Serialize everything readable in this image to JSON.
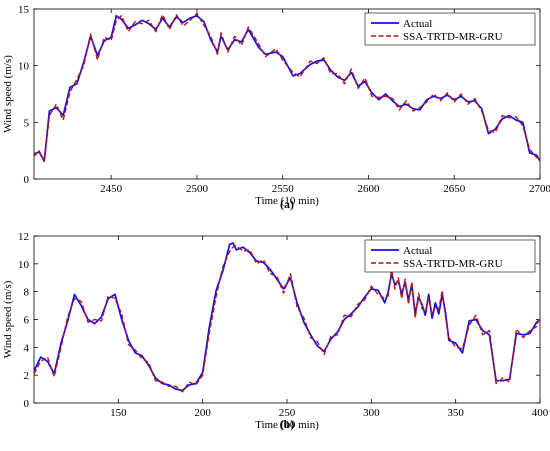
{
  "colors": {
    "actual": "#1010ee",
    "predicted": "#bb1111"
  },
  "chart_data": [
    {
      "type": "line",
      "panel_label": "(a)",
      "xlabel": "Time (10 min)",
      "ylabel": "Wind speed (m/s)",
      "xlim": [
        2405,
        2700
      ],
      "ylim": [
        0,
        15
      ],
      "xticks": [
        2450,
        2500,
        2550,
        2600,
        2650,
        2700
      ],
      "yticks": [
        0,
        5,
        10,
        15
      ],
      "grid": false,
      "legend_position": "top-right",
      "series": [
        {
          "name": "Actual",
          "style": "solid",
          "x": [
            2405,
            2408,
            2411,
            2414,
            2418,
            2422,
            2426,
            2430,
            2434,
            2438,
            2442,
            2446,
            2450,
            2453,
            2456,
            2460,
            2464,
            2468,
            2472,
            2476,
            2480,
            2484,
            2488,
            2492,
            2496,
            2500,
            2504,
            2508,
            2512,
            2514,
            2518,
            2522,
            2526,
            2530,
            2536,
            2540,
            2546,
            2550,
            2556,
            2560,
            2566,
            2570,
            2574,
            2578,
            2582,
            2586,
            2590,
            2594,
            2598,
            2602,
            2606,
            2610,
            2614,
            2618,
            2622,
            2626,
            2630,
            2634,
            2638,
            2642,
            2646,
            2650,
            2654,
            2658,
            2662,
            2666,
            2670,
            2674,
            2678,
            2682,
            2686,
            2690,
            2694,
            2698,
            2700
          ],
          "y": [
            2.2,
            2.4,
            1.6,
            6.0,
            6.3,
            5.6,
            8.1,
            8.4,
            10.3,
            12.6,
            10.9,
            12.2,
            12.5,
            14.4,
            14.1,
            13.3,
            13.6,
            14.0,
            13.7,
            13.2,
            14.2,
            13.4,
            14.3,
            13.8,
            14.2,
            14.4,
            13.9,
            12.3,
            11.2,
            12.6,
            11.4,
            12.3,
            12.1,
            13.2,
            11.6,
            11.0,
            11.2,
            10.8,
            9.1,
            9.3,
            10.1,
            10.4,
            10.5,
            9.6,
            9.0,
            8.7,
            9.4,
            8.2,
            8.6,
            7.6,
            7.0,
            7.5,
            6.9,
            6.4,
            6.6,
            6.2,
            6.1,
            7.0,
            7.3,
            7.1,
            7.4,
            7.0,
            7.3,
            6.8,
            6.9,
            6.2,
            4.0,
            4.4,
            5.3,
            5.6,
            5.2,
            5.0,
            2.3,
            2.1,
            1.6
          ]
        },
        {
          "name": "SSA-TRTD-MR-GRU",
          "style": "dashed",
          "x": [
            2405,
            2408,
            2411,
            2414,
            2418,
            2422,
            2426,
            2430,
            2434,
            2438,
            2442,
            2446,
            2450,
            2453,
            2456,
            2460,
            2464,
            2468,
            2472,
            2476,
            2480,
            2484,
            2488,
            2492,
            2496,
            2500,
            2504,
            2508,
            2512,
            2514,
            2518,
            2522,
            2526,
            2530,
            2536,
            2540,
            2546,
            2550,
            2556,
            2560,
            2566,
            2570,
            2574,
            2578,
            2582,
            2586,
            2590,
            2594,
            2598,
            2602,
            2606,
            2610,
            2614,
            2618,
            2622,
            2626,
            2630,
            2634,
            2638,
            2642,
            2646,
            2650,
            2654,
            2658,
            2662,
            2666,
            2670,
            2674,
            2678,
            2682,
            2686,
            2690,
            2694,
            2698,
            2700
          ],
          "y": [
            2.0,
            2.5,
            1.5,
            5.6,
            6.6,
            5.2,
            7.7,
            8.8,
            10.0,
            12.8,
            10.5,
            12.5,
            12.2,
            14.0,
            14.4,
            13.0,
            13.9,
            13.7,
            14.0,
            13.0,
            14.5,
            13.2,
            14.5,
            13.5,
            14.0,
            14.6,
            13.6,
            12.6,
            11.0,
            12.9,
            11.2,
            12.6,
            11.8,
            13.4,
            11.9,
            10.8,
            11.5,
            10.5,
            9.4,
            9.0,
            10.4,
            10.2,
            10.7,
            9.3,
            9.3,
            8.4,
            9.7,
            8.0,
            8.9,
            7.3,
            7.2,
            7.3,
            7.1,
            6.1,
            6.9,
            6.0,
            6.3,
            6.8,
            7.5,
            6.9,
            7.6,
            6.8,
            7.5,
            6.6,
            7.1,
            6.0,
            4.3,
            4.1,
            5.6,
            5.4,
            5.5,
            4.7,
            2.6,
            1.9,
            1.8
          ]
        }
      ]
    },
    {
      "type": "line",
      "panel_label": "(b)",
      "xlabel": "Time (10 min)",
      "ylabel": "Wind speed (m/s)",
      "xlim": [
        100,
        400
      ],
      "ylim": [
        0,
        12
      ],
      "xticks": [
        150,
        200,
        250,
        300,
        350,
        400
      ],
      "yticks": [
        0,
        2,
        4,
        6,
        8,
        10,
        12
      ],
      "grid": false,
      "legend_position": "top-right",
      "series": [
        {
          "name": "Actual",
          "style": "solid",
          "x": [
            100,
            104,
            108,
            112,
            116,
            120,
            124,
            128,
            132,
            136,
            140,
            144,
            148,
            152,
            156,
            160,
            164,
            168,
            172,
            176,
            180,
            184,
            188,
            192,
            196,
            200,
            204,
            208,
            212,
            216,
            218,
            220,
            224,
            228,
            232,
            236,
            240,
            244,
            248,
            252,
            256,
            260,
            264,
            268,
            272,
            276,
            280,
            284,
            288,
            292,
            296,
            300,
            304,
            308,
            310,
            312,
            314,
            316,
            318,
            320,
            322,
            324,
            326,
            328,
            330,
            332,
            334,
            336,
            338,
            340,
            342,
            344,
            346,
            350,
            354,
            358,
            362,
            366,
            370,
            374,
            378,
            382,
            386,
            390,
            394,
            398,
            400
          ],
          "y": [
            2.3,
            3.3,
            3.0,
            2.1,
            4.3,
            5.9,
            7.8,
            7.0,
            6.0,
            5.7,
            6.2,
            7.5,
            7.8,
            6.0,
            4.5,
            3.6,
            3.4,
            2.7,
            1.8,
            1.4,
            1.3,
            1.0,
            0.9,
            1.3,
            1.4,
            2.2,
            5.5,
            8.1,
            9.5,
            11.4,
            11.5,
            11.0,
            11.2,
            10.8,
            10.2,
            10.1,
            9.6,
            8.9,
            8.2,
            9.0,
            7.2,
            5.8,
            4.9,
            4.1,
            3.7,
            4.6,
            5.1,
            6.0,
            6.4,
            6.9,
            7.6,
            8.2,
            8.1,
            7.2,
            8.0,
            9.3,
            8.5,
            8.8,
            7.8,
            8.7,
            7.4,
            8.5,
            6.4,
            7.6,
            7.1,
            6.3,
            7.8,
            6.1,
            7.2,
            6.4,
            7.8,
            6.5,
            4.5,
            4.3,
            3.6,
            5.9,
            6.0,
            5.2,
            4.9,
            1.6,
            1.6,
            1.7,
            5.0,
            4.9,
            5.0,
            5.8,
            6.0
          ]
        },
        {
          "name": "SSA-TRTD-MR-GRU",
          "style": "dashed",
          "x": [
            100,
            104,
            108,
            112,
            116,
            120,
            124,
            128,
            132,
            136,
            140,
            144,
            148,
            152,
            156,
            160,
            164,
            168,
            172,
            176,
            180,
            184,
            188,
            192,
            196,
            200,
            204,
            208,
            212,
            216,
            218,
            220,
            224,
            228,
            232,
            236,
            240,
            244,
            248,
            252,
            256,
            260,
            264,
            268,
            272,
            276,
            280,
            284,
            288,
            292,
            296,
            300,
            304,
            308,
            310,
            312,
            314,
            316,
            318,
            320,
            322,
            324,
            326,
            328,
            330,
            332,
            334,
            336,
            338,
            340,
            342,
            344,
            346,
            350,
            354,
            358,
            362,
            366,
            370,
            374,
            378,
            382,
            386,
            390,
            394,
            398,
            400
          ],
          "y": [
            2.1,
            3.0,
            3.3,
            1.9,
            4.0,
            6.2,
            7.5,
            7.3,
            5.8,
            6.0,
            5.9,
            7.7,
            7.5,
            6.4,
            4.2,
            3.8,
            3.2,
            2.9,
            1.6,
            1.5,
            1.2,
            1.2,
            0.8,
            1.5,
            1.3,
            2.0,
            5.1,
            7.7,
            9.8,
            10.9,
            11.2,
            11.3,
            10.9,
            11.0,
            10.0,
            10.3,
            9.3,
            9.1,
            7.9,
            9.3,
            6.9,
            6.1,
            4.7,
            4.4,
            3.5,
            4.8,
            4.9,
            6.3,
            6.2,
            7.1,
            7.4,
            8.4,
            7.8,
            7.5,
            7.7,
            9.6,
            8.2,
            9.0,
            7.5,
            8.9,
            7.1,
            8.7,
            6.1,
            7.9,
            6.8,
            6.6,
            7.5,
            6.4,
            6.9,
            6.7,
            8.1,
            6.2,
            4.7,
            4.0,
            3.9,
            5.6,
            6.3,
            4.9,
            5.2,
            1.4,
            1.8,
            1.5,
            5.3,
            4.7,
            5.2,
            5.5,
            6.2
          ]
        }
      ]
    }
  ]
}
